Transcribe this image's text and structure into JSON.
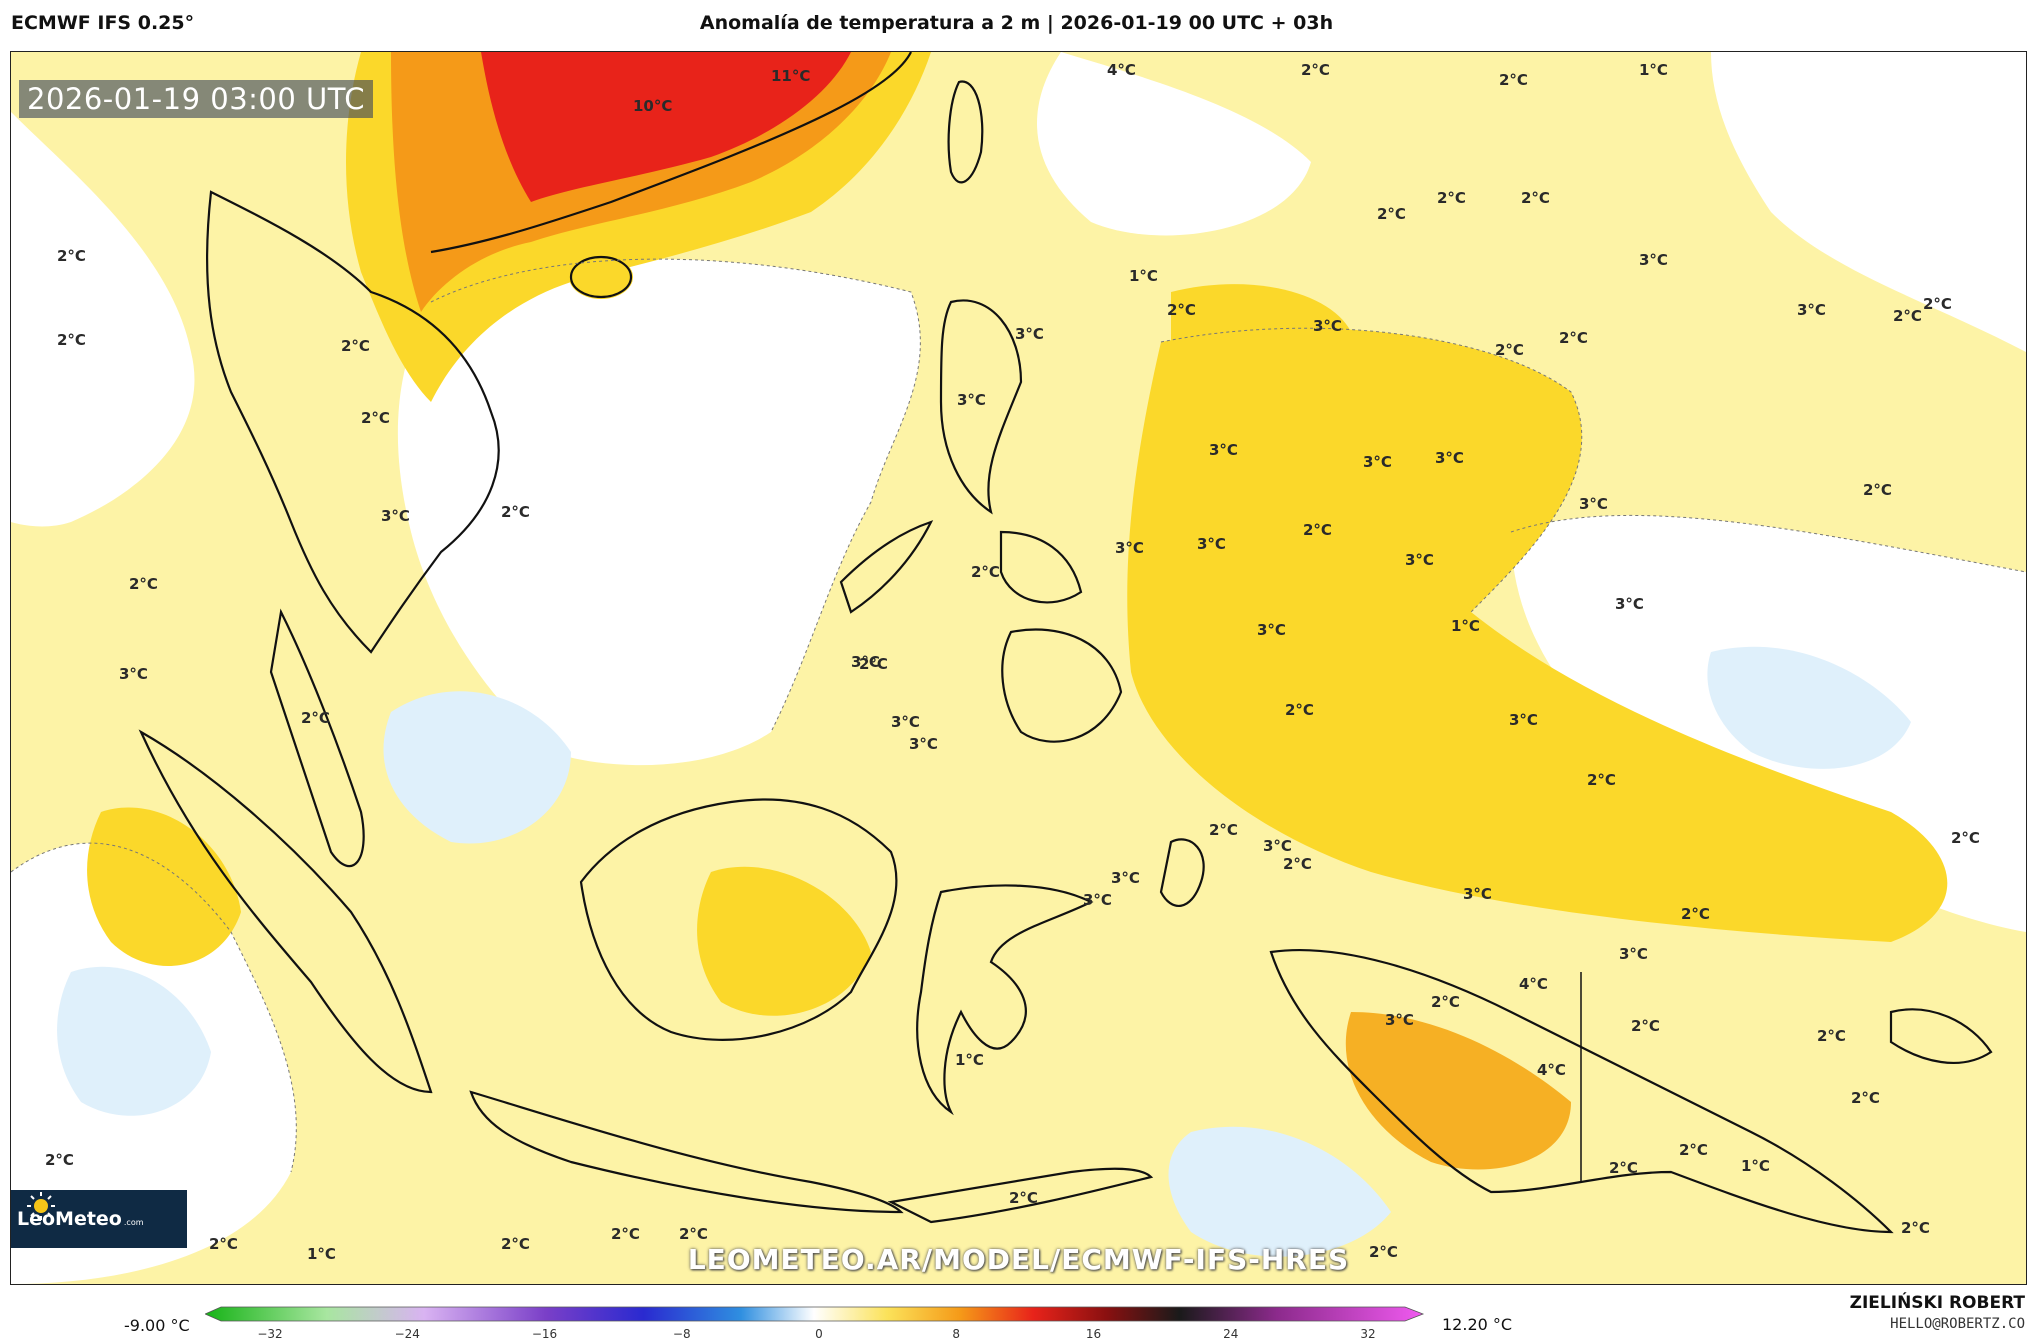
{
  "header": {
    "model": "ECMWF IFS 0.25°",
    "title": "Anomalía de temperatura a 2 m | 2026-01-19 00 UTC + 03h"
  },
  "map": {
    "timestamp": "2026-01-19 03:00 UTC",
    "watermark": "LEOMETEO.AR/MODEL/ECMWF-IFS-HRES",
    "logo": {
      "name": "LeoMeteo",
      "suffix": ".com"
    },
    "labels": [
      "10°C",
      "11°C",
      "4°C",
      "2°C",
      "1°C",
      "2°C",
      "2°C",
      "2°C",
      "2°C",
      "2°C",
      "3°C",
      "2°C",
      "2°C",
      "3°C",
      "2°C",
      "2°C",
      "1°C",
      "2°C",
      "2°C",
      "3°C",
      "2°C",
      "2°C",
      "3°C",
      "3°C",
      "2°C",
      "2°C",
      "2°C",
      "3°C",
      "3°C",
      "3°C",
      "3°C",
      "3°C",
      "1°C",
      "2°C",
      "3°C",
      "2°C",
      "3°C",
      "3°C",
      "3°C",
      "3°C",
      "2°C",
      "2°C",
      "3°C",
      "3°C",
      "3°C",
      "3°C",
      "3°C",
      "2°C",
      "2°C",
      "2°C",
      "3°C",
      "3°C",
      "3°C",
      "3°C",
      "2°C",
      "3°C",
      "2°C",
      "1°C",
      "4°C",
      "3°C",
      "4°C",
      "2°C",
      "2°C",
      "2°C",
      "2°C",
      "1°C",
      "2°C",
      "2°C",
      "2°C",
      "2°C",
      "1°C",
      "2°C",
      "2°C",
      "2°C",
      "2°C",
      "2°C",
      "2°C",
      "2°C"
    ],
    "palette": {
      "warm_strong": "#e8231a",
      "warm_orange": "#f59a18",
      "warm_mid": "#fbd82a",
      "warm_light": "#fdf3a6",
      "neutral": "#ffffff",
      "cool_light": "#dff0fb",
      "cool_mid": "#7ec7ee"
    }
  },
  "legend": {
    "min": "-9.00 °C",
    "max": "12.20 °C",
    "ticks": [
      "−32",
      "−24",
      "−16",
      "−8",
      "0",
      "8",
      "16",
      "24",
      "32"
    ]
  },
  "credits": {
    "author": "ZIELIŃSKI ROBERT",
    "email": "HELLO@ROBERTZ.CO"
  }
}
